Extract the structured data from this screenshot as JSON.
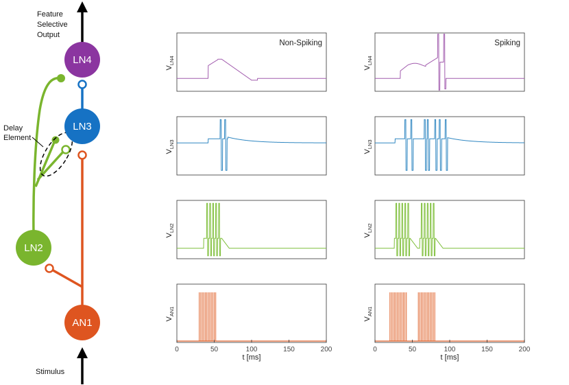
{
  "diagram": {
    "output_label_lines": [
      "Feature",
      "Selective",
      "Output"
    ],
    "stimulus_label": "Stimulus",
    "delay_label_lines": [
      "Delay",
      "Element"
    ],
    "neurons": [
      {
        "id": "ln4",
        "label": "LN4",
        "color": "#8b35a0"
      },
      {
        "id": "ln3",
        "label": "LN3",
        "color": "#1672c4"
      },
      {
        "id": "ln2",
        "label": "LN2",
        "color": "#7ab52e"
      },
      {
        "id": "an1",
        "label": "AN1",
        "color": "#de5520"
      }
    ]
  },
  "chart_data": {
    "type": "line",
    "columns": [
      {
        "title": "Non-Spiking",
        "mode": "nonspiking"
      },
      {
        "title": "Spiking",
        "mode": "spiking"
      }
    ],
    "rows": [
      {
        "id": "ln4",
        "ylabel": "V",
        "ylabel_sub": "LN4",
        "color": "#a25cae"
      },
      {
        "id": "ln3",
        "ylabel": "V",
        "ylabel_sub": "LN3",
        "color": "#2e86c1"
      },
      {
        "id": "ln2",
        "ylabel": "V",
        "ylabel_sub": "LN2",
        "color": "#7fbf3b"
      },
      {
        "id": "an1",
        "ylabel": "V",
        "ylabel_sub": "AN1",
        "color": "#e0622a"
      }
    ],
    "xlim": [
      0,
      200
    ],
    "xticks": [
      "0",
      "50",
      "100",
      "150",
      "200"
    ],
    "xlabel": "t [ms]",
    "stimulus_spikes": {
      "nonspiking": [
        30,
        32,
        34,
        36,
        38,
        40,
        42,
        44,
        46,
        48,
        50,
        52
      ],
      "spiking": [
        20,
        22,
        24,
        26,
        28,
        30,
        32,
        34,
        36,
        38,
        40,
        42,
        58,
        60,
        62,
        64,
        66,
        68,
        70,
        72,
        74,
        76,
        78,
        80
      ]
    },
    "ln2_spikes": {
      "nonspiking": [
        40,
        44,
        48,
        52,
        56
      ],
      "spiking": [
        28,
        32,
        36,
        40,
        44,
        62,
        66,
        70,
        74,
        78
      ]
    },
    "ln3_spikes": {
      "nonspiking": [
        58,
        64
      ],
      "spiking": [
        40,
        48,
        66,
        70,
        80,
        86,
        94
      ]
    },
    "ln4_spikes": {
      "nonspiking": [],
      "spiking": [
        84,
        92
      ]
    }
  }
}
